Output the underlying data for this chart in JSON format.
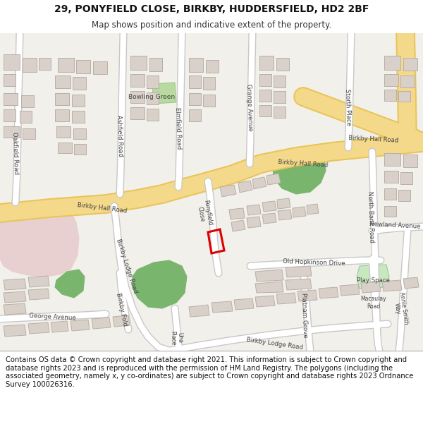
{
  "title_line1": "29, PONYFIELD CLOSE, BIRKBY, HUDDERSFIELD, HD2 2BF",
  "title_line2": "Map shows position and indicative extent of the property.",
  "footer_text": "Contains OS data © Crown copyright and database right 2021. This information is subject to Crown copyright and database rights 2023 and is reproduced with the permission of HM Land Registry. The polygons (including the associated geometry, namely x, y co-ordinates) are subject to Crown copyright and database rights 2023 Ordnance Survey 100026316.",
  "bg_color": "#f2f0eb",
  "road_major_color": "#f5d98b",
  "road_major_edge": "#e8c55a",
  "road_minor_color": "#ffffff",
  "road_minor_edge": "#c8c8c8",
  "building_color": "#d9d0c9",
  "building_edge_color": "#b8b0a8",
  "green_color": "#7ab56e",
  "bowling_color": "#b8d9a0",
  "pink_color": "#e8d0d0",
  "playspace_color": "#c8e8c0",
  "highlight_color": "#dd0000",
  "text_color": "#444444",
  "white": "#ffffff",
  "title_fontsize": 10,
  "subtitle_fontsize": 8.5,
  "footer_fontsize": 7.2,
  "label_fontsize": 6.2
}
